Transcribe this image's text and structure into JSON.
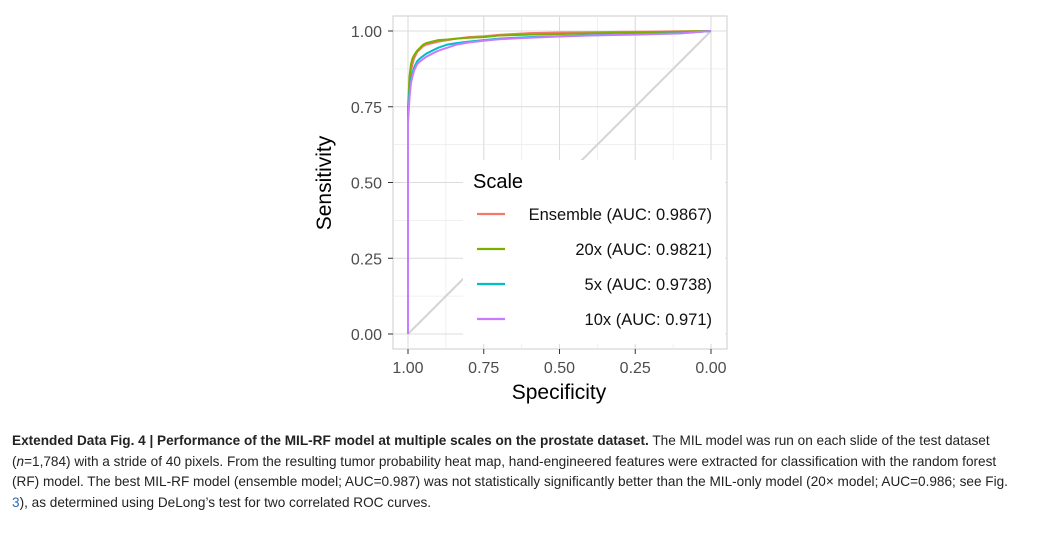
{
  "chart_data": {
    "type": "line",
    "xlabel": "Specificity",
    "ylabel": "Sensitivity",
    "xlim": [
      1.0,
      0.0
    ],
    "ylim": [
      0.0,
      1.0
    ],
    "x_ticks": [
      1.0,
      0.75,
      0.5,
      0.25,
      0.0
    ],
    "x_tick_labels": [
      "1.00",
      "0.75",
      "0.50",
      "0.25",
      "0.00"
    ],
    "y_ticks": [
      0.0,
      0.25,
      0.5,
      0.75,
      1.0
    ],
    "y_tick_labels": [
      "0.00",
      "0.25",
      "0.50",
      "0.75",
      "1.00"
    ],
    "grid": true,
    "legend": {
      "title": "Scale",
      "placement": "bottom-right"
    },
    "diagonal_reference": true,
    "series": [
      {
        "name": "Ensemble (AUC: 0.9867)",
        "color": "#F8766D",
        "x": [
          1.0,
          1.0,
          0.995,
          0.99,
          0.985,
          0.98,
          0.97,
          0.96,
          0.95,
          0.94,
          0.92,
          0.9,
          0.87,
          0.84,
          0.8,
          0.75,
          0.7,
          0.65,
          0.6,
          0.5,
          0.4,
          0.3,
          0.2,
          0.1,
          0.0
        ],
        "y": [
          0.0,
          0.7,
          0.82,
          0.87,
          0.89,
          0.91,
          0.93,
          0.94,
          0.95,
          0.955,
          0.96,
          0.965,
          0.97,
          0.975,
          0.98,
          0.983,
          0.987,
          0.99,
          0.993,
          0.995,
          0.996,
          0.997,
          0.998,
          0.999,
          1.0
        ]
      },
      {
        "name": "20x (AUC: 0.9821)",
        "color": "#7CAE00",
        "x": [
          1.0,
          1.0,
          0.995,
          0.99,
          0.985,
          0.98,
          0.97,
          0.96,
          0.95,
          0.94,
          0.92,
          0.9,
          0.87,
          0.84,
          0.8,
          0.75,
          0.7,
          0.6,
          0.5,
          0.4,
          0.3,
          0.2,
          0.1,
          0.0
        ],
        "y": [
          0.0,
          0.75,
          0.85,
          0.89,
          0.91,
          0.92,
          0.935,
          0.945,
          0.955,
          0.96,
          0.965,
          0.97,
          0.972,
          0.975,
          0.978,
          0.98,
          0.985,
          0.988,
          0.99,
          0.992,
          0.994,
          0.996,
          0.998,
          1.0
        ]
      },
      {
        "name": "5x (AUC: 0.9738)",
        "color": "#00BFC4",
        "x": [
          1.0,
          1.0,
          0.995,
          0.99,
          0.985,
          0.98,
          0.97,
          0.96,
          0.94,
          0.92,
          0.9,
          0.87,
          0.84,
          0.8,
          0.75,
          0.7,
          0.6,
          0.5,
          0.4,
          0.3,
          0.2,
          0.1,
          0.0
        ],
        "y": [
          0.0,
          0.72,
          0.8,
          0.84,
          0.86,
          0.88,
          0.9,
          0.91,
          0.925,
          0.935,
          0.945,
          0.955,
          0.96,
          0.965,
          0.97,
          0.975,
          0.98,
          0.983,
          0.986,
          0.988,
          0.99,
          0.993,
          1.0
        ]
      },
      {
        "name": "10x (AUC: 0.971)",
        "color": "#C77CFF",
        "x": [
          1.0,
          1.0,
          0.995,
          0.99,
          0.985,
          0.98,
          0.97,
          0.96,
          0.94,
          0.92,
          0.9,
          0.87,
          0.84,
          0.8,
          0.75,
          0.7,
          0.6,
          0.5,
          0.4,
          0.3,
          0.2,
          0.1,
          0.0
        ],
        "y": [
          0.0,
          0.7,
          0.78,
          0.83,
          0.85,
          0.87,
          0.89,
          0.9,
          0.915,
          0.925,
          0.935,
          0.945,
          0.955,
          0.962,
          0.968,
          0.973,
          0.978,
          0.982,
          0.985,
          0.987,
          0.989,
          0.992,
          1.0
        ]
      }
    ]
  },
  "caption": {
    "label": "Extended Data Fig. 4 | Performance of the MIL-RF model at multiple scales on the prostate dataset.",
    "text_1": " The MIL model was run on each slide of the test dataset (",
    "n_italic": "n",
    "text_2": "=1,784) with a stride of 40 pixels. From the resulting tumor probability heat map, hand-engineered features were extracted for classification with the random forest (RF) model. The best MIL-RF model (ensemble model; AUC=0.987) was not statistically significantly better than the MIL-only model (20× model; AUC=0.986; see Fig. ",
    "fig_ref": "3",
    "text_3": "), as determined using DeLong’s test for two correlated ROC curves."
  }
}
